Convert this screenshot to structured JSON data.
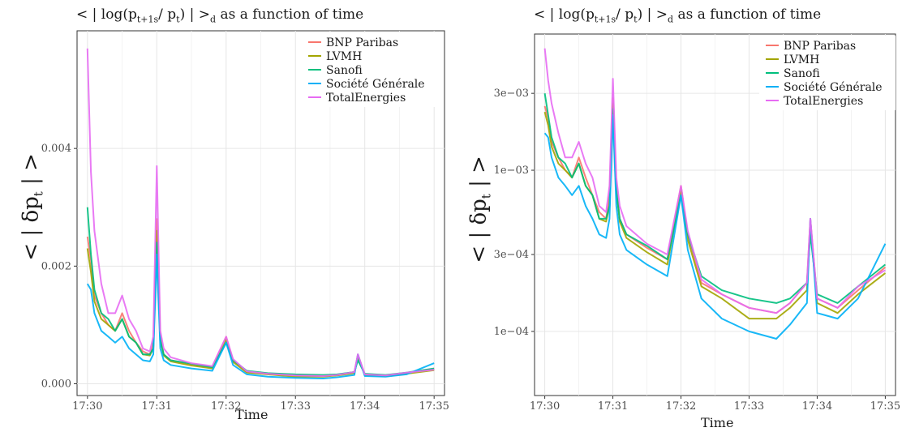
{
  "panels": [
    {
      "title": "<|log(p_{t+1s}/p_t)|>_d as a function of time",
      "title_parts": {
        "pre": "< | log(p",
        "s1": "t+1s",
        "mid": "/ p",
        "s2": "t",
        "post": ") | >",
        "s3": "d",
        "tail": " as a function of time"
      },
      "ylabel_parts": {
        "pre": "< | δp",
        "sub": "t",
        "post": " | >"
      },
      "xlabel": "Time"
    },
    {
      "title": "<|log(p_{t+1s}/p_t)|>_d as a function of time",
      "title_parts": {
        "pre": "< | log(p",
        "s1": "t+1s",
        "mid": "/ p",
        "s2": "t",
        "post": ") | >",
        "s3": "d",
        "tail": " as a function of time"
      },
      "ylabel_parts": {
        "pre": "< | δp",
        "sub": "t",
        "post": " | >"
      },
      "xlabel": "Time"
    }
  ],
  "chart_data": [
    {
      "type": "line",
      "scale": "linear",
      "title": "<|log(p_{t+1s}/p_t)|>_d as a function of time",
      "xlabel": "Time",
      "ylabel": "<|δp_t|>",
      "x_ticks": [
        "17:30",
        "17:31",
        "17:32",
        "17:33",
        "17:34",
        "17:35"
      ],
      "y_ticks": [
        {
          "value": 0.0,
          "label": "0.000"
        },
        {
          "value": 0.002,
          "label": "0.002"
        },
        {
          "value": 0.004,
          "label": "0.004"
        }
      ],
      "ylim": [
        -0.0002,
        0.006
      ],
      "grid": true,
      "legend_position": "top-right",
      "x_minutes": [
        0,
        0.05,
        0.1,
        0.2,
        0.3,
        0.4,
        0.5,
        0.6,
        0.7,
        0.8,
        0.9,
        0.95,
        1.0,
        1.05,
        1.1,
        1.2,
        1.5,
        1.8,
        2.0,
        2.1,
        2.3,
        2.6,
        3.0,
        3.4,
        3.6,
        3.85,
        3.9,
        4.0,
        4.3,
        4.6,
        5.0
      ],
      "series": [
        {
          "name": "BNP Paribas",
          "color": "#F8766D",
          "values": [
            0.0025,
            0.0021,
            0.0015,
            0.0012,
            0.001,
            0.0009,
            0.0012,
            0.0009,
            0.0007,
            0.00055,
            0.0005,
            0.0007,
            0.0028,
            0.0008,
            0.0005,
            0.0004,
            0.00033,
            0.00028,
            0.0008,
            0.0004,
            0.0002,
            0.00017,
            0.00014,
            0.00013,
            0.00015,
            0.0002,
            0.0005,
            0.00016,
            0.00014,
            0.00018,
            0.00025
          ]
        },
        {
          "name": "LVMH",
          "color": "#A3A500",
          "values": [
            0.0023,
            0.0019,
            0.0014,
            0.0011,
            0.001,
            0.0009,
            0.0011,
            0.0008,
            0.0007,
            0.0005,
            0.00048,
            0.0006,
            0.0026,
            0.00075,
            0.00048,
            0.00038,
            0.00031,
            0.00026,
            0.00075,
            0.00037,
            0.00019,
            0.00016,
            0.00012,
            0.00012,
            0.00014,
            0.00018,
            0.00045,
            0.00015,
            0.00013,
            0.00017,
            0.00023
          ]
        },
        {
          "name": "Sanofi",
          "color": "#00BF7D",
          "values": [
            0.003,
            0.0022,
            0.0016,
            0.0012,
            0.0011,
            0.0009,
            0.0011,
            0.0008,
            0.0007,
            0.0005,
            0.0005,
            0.0006,
            0.0024,
            0.00075,
            0.0005,
            0.0004,
            0.00034,
            0.00028,
            0.0007,
            0.0004,
            0.00022,
            0.00018,
            0.00016,
            0.00015,
            0.00016,
            0.0002,
            0.0004,
            0.00017,
            0.00015,
            0.00019,
            0.00026
          ]
        },
        {
          "name": "Société Générale",
          "color": "#00B0F6",
          "values": [
            0.0017,
            0.0016,
            0.0012,
            0.0009,
            0.0008,
            0.0007,
            0.0008,
            0.0006,
            0.0005,
            0.0004,
            0.00038,
            0.0005,
            0.0022,
            0.0006,
            0.0004,
            0.00032,
            0.00026,
            0.00022,
            0.0007,
            0.00032,
            0.00016,
            0.00012,
            0.0001,
            9e-05,
            0.00011,
            0.00015,
            0.0005,
            0.00013,
            0.00012,
            0.00016,
            0.00035
          ]
        },
        {
          "name": "TotalEnergies",
          "color": "#E76BF3",
          "values": [
            0.0057,
            0.0036,
            0.0026,
            0.0017,
            0.0012,
            0.0012,
            0.0015,
            0.0011,
            0.0009,
            0.0006,
            0.00055,
            0.0008,
            0.0037,
            0.0009,
            0.0006,
            0.00045,
            0.00035,
            0.0003,
            0.0008,
            0.00042,
            0.00021,
            0.00017,
            0.00014,
            0.00013,
            0.00015,
            0.0002,
            0.0005,
            0.00016,
            0.00014,
            0.00019,
            0.00024
          ]
        }
      ]
    },
    {
      "type": "line",
      "scale": "log",
      "title": "<|log(p_{t+1s}/p_t)|>_d as a function of time",
      "xlabel": "Time",
      "ylabel": "<|δp_t|>",
      "x_ticks": [
        "17:30",
        "17:31",
        "17:32",
        "17:33",
        "17:34",
        "17:35"
      ],
      "y_ticks": [
        {
          "value": 0.0001,
          "label": "1e−04"
        },
        {
          "value": 0.0003,
          "label": "3e−04"
        },
        {
          "value": 0.001,
          "label": "1e−03"
        },
        {
          "value": 0.003,
          "label": "3e−03"
        }
      ],
      "ylim": [
        4e-05,
        0.007
      ],
      "grid": true,
      "legend_position": "top-right",
      "x_minutes": [
        0,
        0.05,
        0.1,
        0.2,
        0.3,
        0.4,
        0.5,
        0.6,
        0.7,
        0.8,
        0.9,
        0.95,
        1.0,
        1.05,
        1.1,
        1.2,
        1.5,
        1.8,
        2.0,
        2.1,
        2.3,
        2.6,
        3.0,
        3.4,
        3.6,
        3.85,
        3.9,
        4.0,
        4.3,
        4.6,
        5.0
      ],
      "series": [
        {
          "name": "BNP Paribas",
          "color": "#F8766D",
          "values": [
            0.0025,
            0.0021,
            0.0015,
            0.0012,
            0.001,
            0.0009,
            0.0012,
            0.0009,
            0.0007,
            0.00055,
            0.0005,
            0.0007,
            0.0028,
            0.0008,
            0.0005,
            0.0004,
            0.00033,
            0.00028,
            0.0008,
            0.0004,
            0.0002,
            0.00017,
            0.00014,
            0.00013,
            0.00015,
            0.0002,
            0.0005,
            0.00016,
            0.00014,
            0.00018,
            0.00025
          ]
        },
        {
          "name": "LVMH",
          "color": "#A3A500",
          "values": [
            0.0023,
            0.0019,
            0.0014,
            0.0011,
            0.001,
            0.0009,
            0.0011,
            0.0008,
            0.0007,
            0.0005,
            0.00048,
            0.0006,
            0.0026,
            0.00075,
            0.00048,
            0.00038,
            0.00031,
            0.00026,
            0.00075,
            0.00037,
            0.00019,
            0.00016,
            0.00012,
            0.00012,
            0.00014,
            0.00018,
            0.00045,
            0.00015,
            0.00013,
            0.00017,
            0.00023
          ]
        },
        {
          "name": "Sanofi",
          "color": "#00BF7D",
          "values": [
            0.003,
            0.0022,
            0.0016,
            0.0012,
            0.0011,
            0.0009,
            0.0011,
            0.0008,
            0.0007,
            0.0005,
            0.0005,
            0.0006,
            0.0024,
            0.00075,
            0.0005,
            0.0004,
            0.00034,
            0.00028,
            0.0007,
            0.0004,
            0.00022,
            0.00018,
            0.00016,
            0.00015,
            0.00016,
            0.0002,
            0.0004,
            0.00017,
            0.00015,
            0.00019,
            0.00026
          ]
        },
        {
          "name": "Société Générale",
          "color": "#00B0F6",
          "values": [
            0.0017,
            0.0016,
            0.0012,
            0.0009,
            0.0008,
            0.0007,
            0.0008,
            0.0006,
            0.0005,
            0.0004,
            0.00038,
            0.0005,
            0.0022,
            0.0006,
            0.0004,
            0.00032,
            0.00026,
            0.00022,
            0.0007,
            0.00032,
            0.00016,
            0.00012,
            0.0001,
            9e-05,
            0.00011,
            0.00015,
            0.0005,
            0.00013,
            0.00012,
            0.00016,
            0.00035
          ]
        },
        {
          "name": "TotalEnergies",
          "color": "#E76BF3",
          "values": [
            0.0057,
            0.0036,
            0.0026,
            0.0017,
            0.0012,
            0.0012,
            0.0015,
            0.0011,
            0.0009,
            0.0006,
            0.00055,
            0.0008,
            0.0037,
            0.0009,
            0.0006,
            0.00045,
            0.00035,
            0.0003,
            0.0008,
            0.00042,
            0.00021,
            0.00017,
            0.00014,
            0.00013,
            0.00015,
            0.0002,
            0.0005,
            0.00016,
            0.00014,
            0.00019,
            0.00024
          ]
        }
      ]
    }
  ]
}
